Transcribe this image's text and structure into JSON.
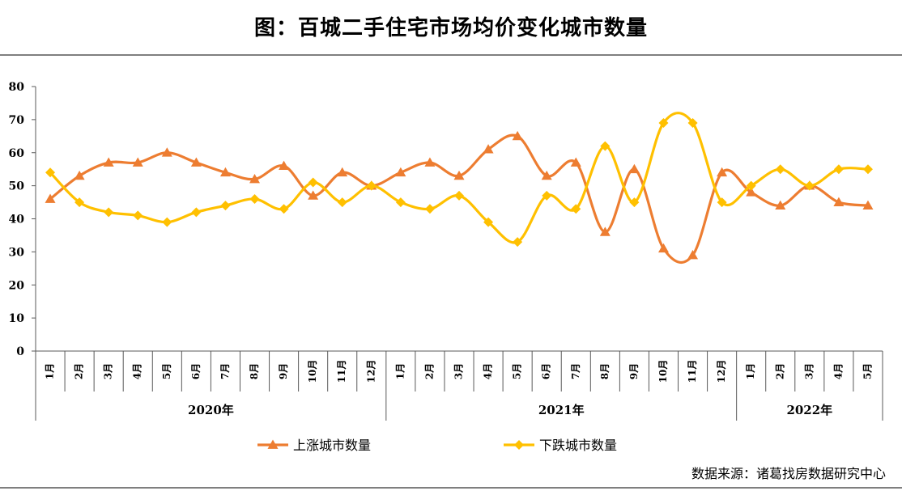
{
  "title": "图：百城二手住宅市场均价变化城市数量",
  "source": "数据来源：诸葛找房数据研究中心",
  "chart_data": {
    "type": "line",
    "ylim": [
      0,
      80
    ],
    "yticks": [
      "0",
      "10",
      "20",
      "30",
      "40",
      "50",
      "60",
      "70",
      "80"
    ],
    "grid": false,
    "legend_position": "bottom",
    "categories": [
      "1月",
      "2月",
      "3月",
      "4月",
      "5月",
      "6月",
      "7月",
      "8月",
      "9月",
      "10月",
      "11月",
      "12月",
      "1月",
      "2月",
      "3月",
      "4月",
      "5月",
      "6月",
      "7月",
      "8月",
      "9月",
      "10月",
      "11月",
      "12月",
      "1月",
      "2月",
      "3月",
      "4月",
      "5月"
    ],
    "groups": [
      {
        "label": "2020年",
        "count": 12
      },
      {
        "label": "2021年",
        "count": 12
      },
      {
        "label": "2022年",
        "count": 5
      }
    ],
    "series": [
      {
        "name": "上涨城市数量",
        "color": "#ED7D31",
        "marker": "triangle",
        "values": [
          46,
          53,
          57,
          57,
          60,
          57,
          54,
          52,
          56,
          47,
          54,
          50,
          54,
          57,
          53,
          61,
          65,
          53,
          57,
          36,
          55,
          31,
          29,
          54,
          48,
          44,
          50,
          45,
          44
        ]
      },
      {
        "name": "下跌城市数量",
        "color": "#FFC000",
        "marker": "diamond",
        "values": [
          54,
          45,
          42,
          41,
          39,
          42,
          44,
          46,
          43,
          51,
          45,
          50,
          45,
          43,
          47,
          39,
          33,
          47,
          43,
          62,
          45,
          69,
          69,
          45,
          50,
          55,
          50,
          55,
          55
        ]
      }
    ]
  }
}
